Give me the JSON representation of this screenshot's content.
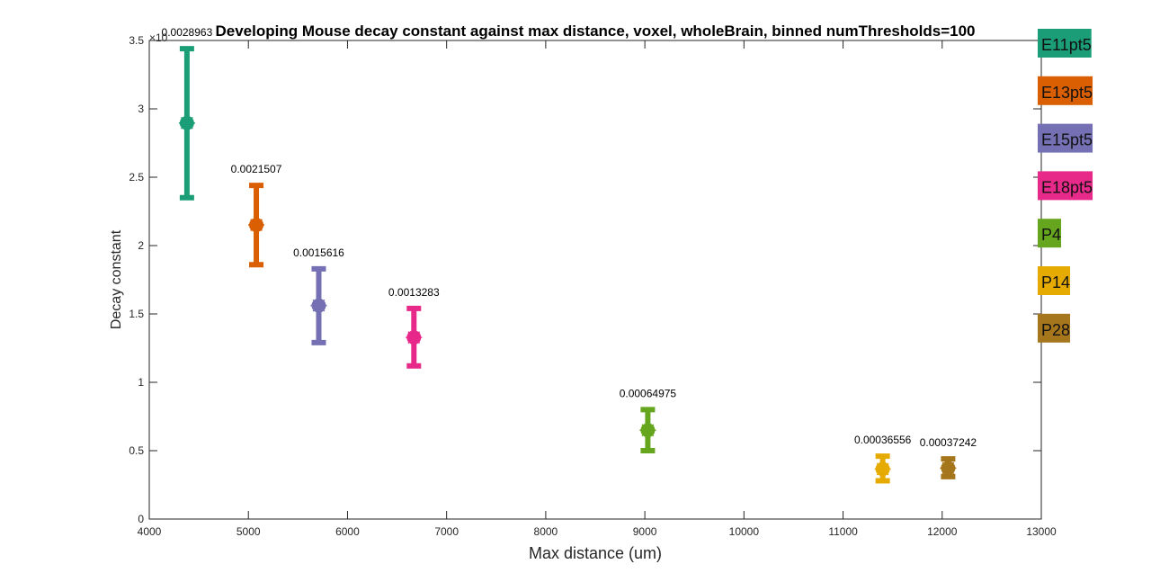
{
  "chart_data": {
    "type": "scatter",
    "title": "Developing Mouse decay constant against max distance, voxel, wholeBrain, binned numThresholds=100",
    "xlabel": "Max distance (um)",
    "ylabel": "Decay constant",
    "xlim": [
      4000,
      13000
    ],
    "ylim": [
      0,
      0.0035
    ],
    "y_exponent_label": "×10",
    "x_ticks": [
      "4000",
      "5000",
      "6000",
      "7000",
      "8000",
      "9000",
      "10000",
      "11000",
      "12000",
      "13000"
    ],
    "y_ticks": [
      "0",
      "0.5",
      "1",
      "1.5",
      "2",
      "2.5",
      "3",
      "3.5"
    ],
    "grid": false,
    "legend_position": "outside-right",
    "series": [
      {
        "name": "E11pt5",
        "color": "#1b9e77",
        "x": 4380,
        "y": 0.0028963,
        "err_low": 0.00235,
        "err_high": 0.00344,
        "label": "0.0028963"
      },
      {
        "name": "E13pt5",
        "color": "#d95f02",
        "x": 5080,
        "y": 0.0021507,
        "err_low": 0.00186,
        "err_high": 0.00244,
        "label": "0.0021507"
      },
      {
        "name": "E15pt5",
        "color": "#7570b3",
        "x": 5710,
        "y": 0.0015616,
        "err_low": 0.00129,
        "err_high": 0.00183,
        "label": "0.0015616"
      },
      {
        "name": "E18pt5",
        "color": "#e7298a",
        "x": 6670,
        "y": 0.0013283,
        "err_low": 0.00112,
        "err_high": 0.00154,
        "label": "0.0013283"
      },
      {
        "name": "P4",
        "color": "#66a61e",
        "x": 9030,
        "y": 0.00064975,
        "err_low": 0.0005,
        "err_high": 0.0008,
        "label": "0.00064975"
      },
      {
        "name": "P14",
        "color": "#e6ab02",
        "x": 11400,
        "y": 0.00036556,
        "err_low": 0.00028,
        "err_high": 0.00046,
        "label": "0.00036556"
      },
      {
        "name": "P28",
        "color": "#a6761d",
        "x": 12060,
        "y": 0.00037242,
        "err_low": 0.00031,
        "err_high": 0.00044,
        "label": "0.00037242"
      }
    ]
  }
}
